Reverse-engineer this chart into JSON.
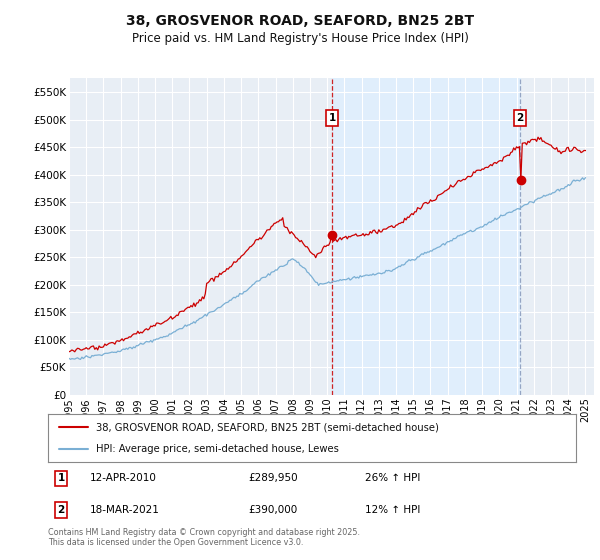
{
  "title": "38, GROSVENOR ROAD, SEAFORD, BN25 2BT",
  "subtitle": "Price paid vs. HM Land Registry's House Price Index (HPI)",
  "ylim": [
    0,
    575000
  ],
  "yticks": [
    0,
    50000,
    100000,
    150000,
    200000,
    250000,
    300000,
    350000,
    400000,
    450000,
    500000,
    550000
  ],
  "ytick_labels": [
    "£0",
    "£50K",
    "£100K",
    "£150K",
    "£200K",
    "£250K",
    "£300K",
    "£350K",
    "£400K",
    "£450K",
    "£500K",
    "£550K"
  ],
  "xtick_years": [
    1995,
    1996,
    1997,
    1998,
    1999,
    2000,
    2001,
    2002,
    2003,
    2004,
    2005,
    2006,
    2007,
    2008,
    2009,
    2010,
    2011,
    2012,
    2013,
    2014,
    2015,
    2016,
    2017,
    2018,
    2019,
    2020,
    2021,
    2022,
    2023,
    2024,
    2025
  ],
  "sale1_x": 2010.28,
  "sale1_y": 289950,
  "sale1_label": "1",
  "sale1_date": "12-APR-2010",
  "sale1_price": "£289,950",
  "sale1_hpi": "26% ↑ HPI",
  "sale2_x": 2021.21,
  "sale2_y": 390000,
  "sale2_label": "2",
  "sale2_date": "18-MAR-2021",
  "sale2_price": "£390,000",
  "sale2_hpi": "12% ↑ HPI",
  "red_color": "#cc0000",
  "blue_color": "#7aafd4",
  "shade_color": "#ddeeff",
  "bg_color": "#e8eef5",
  "grid_color": "#ffffff",
  "legend_label_red": "38, GROSVENOR ROAD, SEAFORD, BN25 2BT (semi-detached house)",
  "legend_label_blue": "HPI: Average price, semi-detached house, Lewes",
  "footer": "Contains HM Land Registry data © Crown copyright and database right 2025.\nThis data is licensed under the Open Government Licence v3.0."
}
